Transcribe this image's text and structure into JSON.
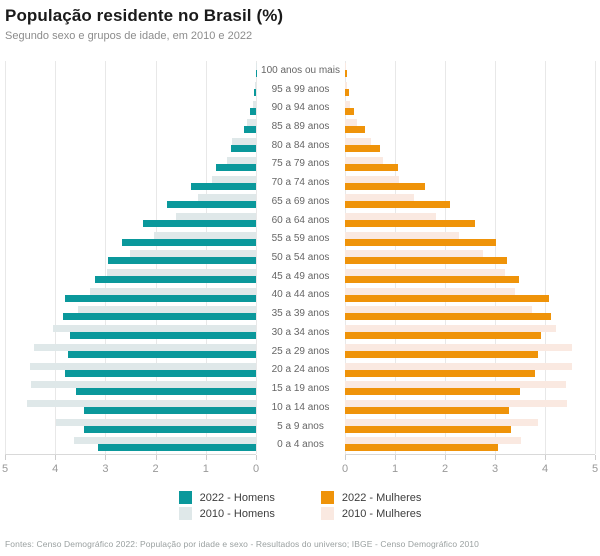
{
  "header": {
    "title": "População residente no Brasil (%)",
    "subtitle": "Segundo sexo e grupos de idade, em 2010 e 2022"
  },
  "footer": {
    "sources": "Fontes: Censo Demográfico 2022: População por idade e sexo - Resultados do universo; IBGE - Censo Demográfico 2010"
  },
  "colors": {
    "men_2022": "#0a989b",
    "men_2010": "#dfe8e9",
    "women_2022": "#ef9309",
    "women_2010": "#fae9e1",
    "gridline": "#e8e8e8",
    "axis_line": "#d9d9d9",
    "tick_label": "#999999",
    "age_label": "#666666"
  },
  "legend": {
    "items": [
      {
        "label": "2022 - Homens",
        "color": "#0a989b"
      },
      {
        "label": "2010 - Homens",
        "color": "#dfe8e9"
      },
      {
        "label": "2022 - Mulheres",
        "color": "#ef9309"
      },
      {
        "label": "2010 - Mulheres",
        "color": "#fae9e1"
      }
    ]
  },
  "chart_data": {
    "type": "bar",
    "subtype": "population-pyramid",
    "title": "População residente no Brasil (%)",
    "subtitle": "Segundo sexo e grupos de idade, em 2010 e 2022",
    "grid": true,
    "xlim": [
      0,
      5
    ],
    "x_ticks_left": [
      "5",
      "4",
      "3",
      "2",
      "1",
      "0"
    ],
    "x_ticks_right": [
      "0",
      "1",
      "2",
      "3",
      "4",
      "5"
    ],
    "age_groups": [
      "100 anos ou mais",
      "95 a 99 anos",
      "90 a 94 anos",
      "85 a 89 anos",
      "80 a 84 anos",
      "75 a 79 anos",
      "70 a 74 anos",
      "65 a 69 anos",
      "60 a 64 anos",
      "55 a 59 anos",
      "50 a 54 anos",
      "45 a 49 anos",
      "40 a 44 anos",
      "35 a 39 anos",
      "30 a 34 anos",
      "25 a 29 anos",
      "20 a 24 anos",
      "15 a 19 anos",
      "10 a 14 anos",
      "5 a 9 anos",
      "0 a 4 anos"
    ],
    "series": [
      {
        "name": "2010 - Homens",
        "side": "left",
        "color": "#dfe8e9",
        "values": [
          0.01,
          0.03,
          0.07,
          0.17,
          0.48,
          0.57,
          0.87,
          1.16,
          1.59,
          2.03,
          2.52,
          2.97,
          3.3,
          3.54,
          4.05,
          4.43,
          4.51,
          4.48,
          4.56,
          3.98,
          3.62
        ]
      },
      {
        "name": "2022 - Homens",
        "side": "left",
        "color": "#0a989b",
        "values": [
          0.01,
          0.04,
          0.11,
          0.23,
          0.5,
          0.8,
          1.29,
          1.77,
          2.25,
          2.66,
          2.94,
          3.21,
          3.81,
          3.85,
          3.7,
          3.75,
          3.8,
          3.59,
          3.43,
          3.42,
          3.15
        ]
      },
      {
        "name": "2010 - Mulheres",
        "side": "right",
        "color": "#fae9e1",
        "values": [
          0.01,
          0.04,
          0.1,
          0.24,
          0.51,
          0.76,
          1.08,
          1.37,
          1.81,
          2.27,
          2.76,
          3.21,
          3.4,
          3.73,
          4.22,
          4.54,
          4.54,
          4.42,
          4.43,
          3.85,
          3.52
        ]
      },
      {
        "name": "2022 - Mulheres",
        "side": "right",
        "color": "#ef9309",
        "values": [
          0.03,
          0.07,
          0.17,
          0.39,
          0.7,
          1.06,
          1.59,
          2.1,
          2.6,
          3.01,
          3.24,
          3.48,
          4.07,
          4.11,
          3.91,
          3.85,
          3.79,
          3.49,
          3.28,
          3.31,
          3.06
        ]
      }
    ]
  }
}
